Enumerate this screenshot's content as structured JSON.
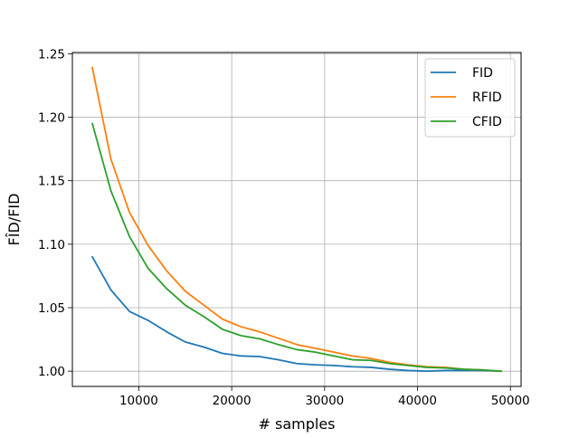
{
  "chart_data": {
    "type": "line",
    "title": "",
    "xlabel": "# samples",
    "ylabel": "FÎD/FID",
    "xlim": [
      2850,
      51150
    ],
    "ylim": [
      0.988,
      1.251
    ],
    "xticks": [
      10000,
      20000,
      30000,
      40000,
      50000
    ],
    "yticks": [
      1.0,
      1.05,
      1.1,
      1.15,
      1.2,
      1.25
    ],
    "xtick_labels": [
      "10000",
      "20000",
      "30000",
      "40000",
      "50000"
    ],
    "ytick_labels": [
      "1.00",
      "1.05",
      "1.10",
      "1.15",
      "1.20",
      "1.25"
    ],
    "grid": true,
    "legend_position": "top-right",
    "x": [
      5000,
      7000,
      9000,
      11000,
      13000,
      15000,
      17000,
      19000,
      21000,
      23000,
      25000,
      27000,
      29000,
      31000,
      33000,
      35000,
      37000,
      39000,
      41000,
      43000,
      45000,
      47000,
      49000
    ],
    "series": [
      {
        "name": "FID",
        "color": "#1f77b4",
        "values": [
          1.09,
          1.064,
          1.047,
          1.04,
          1.031,
          1.023,
          1.019,
          1.014,
          1.012,
          1.0115,
          1.009,
          1.006,
          1.005,
          1.0045,
          1.0035,
          1.003,
          1.0015,
          1.0005,
          1.0,
          1.0005,
          1.0005,
          1.0005,
          1.0
        ]
      },
      {
        "name": "RFID",
        "color": "#ff7f0e",
        "values": [
          1.239,
          1.167,
          1.125,
          1.099,
          1.079,
          1.063,
          1.052,
          1.041,
          1.035,
          1.031,
          1.026,
          1.021,
          1.018,
          1.015,
          1.012,
          1.01,
          1.007,
          1.005,
          1.0035,
          1.003,
          1.0015,
          1.001,
          1.0
        ]
      },
      {
        "name": "CFID",
        "color": "#2ca02c",
        "values": [
          1.195,
          1.142,
          1.106,
          1.081,
          1.065,
          1.052,
          1.043,
          1.033,
          1.028,
          1.0255,
          1.021,
          1.017,
          1.015,
          1.012,
          1.009,
          1.0085,
          1.006,
          1.0045,
          1.003,
          1.0025,
          1.0015,
          1.001,
          1.0
        ]
      }
    ]
  }
}
